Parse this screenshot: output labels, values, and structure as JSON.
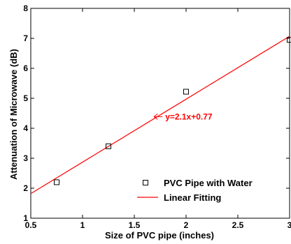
{
  "chart_data": {
    "type": "scatter",
    "xlabel": "Size of PVC pipe (inches)",
    "ylabel": "Attenuation of Microwave (dB)",
    "xlim": [
      0.5,
      3
    ],
    "ylim": [
      1,
      8
    ],
    "xticks": [
      "0.5",
      "1",
      "1.5",
      "2",
      "2.5",
      "3"
    ],
    "yticks": [
      "1",
      "2",
      "3",
      "4",
      "5",
      "6",
      "7",
      "8"
    ],
    "grid": false,
    "legend_position": "bottom-right",
    "series": [
      {
        "name": "PVC Pipe with Water",
        "kind": "markers",
        "marker": "open-square",
        "color": "#000000",
        "x": [
          0.75,
          1.25,
          2.0,
          3.0
        ],
        "y": [
          2.2,
          3.4,
          5.22,
          6.95
        ]
      },
      {
        "name": "Linear Fitting",
        "kind": "line",
        "color": "#ff0000",
        "slope": 2.1,
        "intercept": 0.77
      }
    ],
    "annotation": {
      "text": "y=2.1x+0.77",
      "color": "#ff0000",
      "x": 1.65,
      "y": 4.2
    }
  }
}
